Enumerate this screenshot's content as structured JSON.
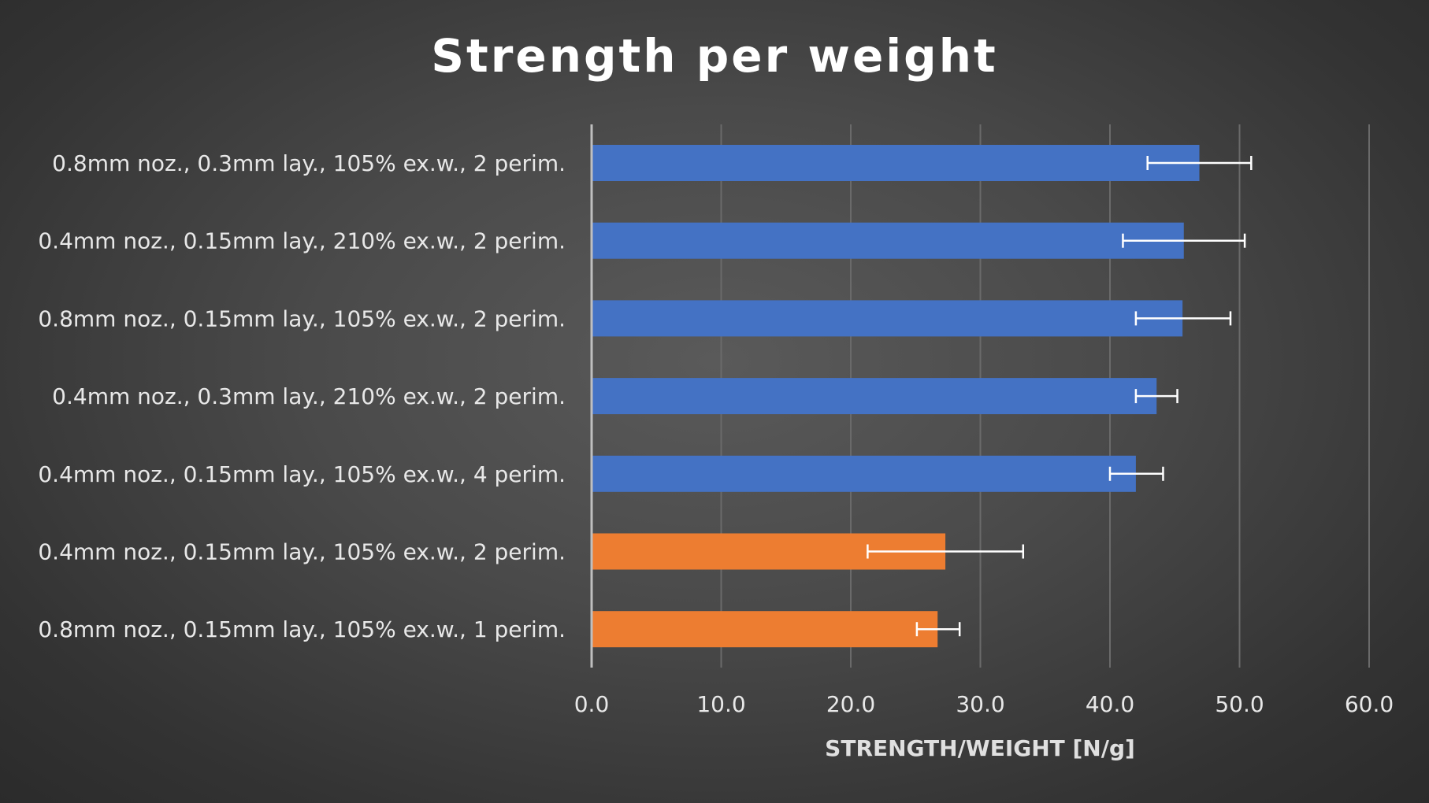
{
  "chart_data": {
    "type": "bar",
    "orientation": "horizontal",
    "title": "Strength per weight",
    "xlabel": "STRENGTH/WEIGHT [N/g]",
    "ylabel": "",
    "xlim": [
      0,
      60
    ],
    "x_ticks": [
      "0.0",
      "10.0",
      "20.0",
      "30.0",
      "40.0",
      "50.0",
      "60.0"
    ],
    "x_tick_values": [
      0,
      10,
      20,
      30,
      40,
      50,
      60
    ],
    "grid": true,
    "legend": false,
    "categories": [
      "0.8mm noz., 0.3mm lay., 105% ex.w., 2 perim.",
      "0.4mm noz., 0.15mm lay., 210% ex.w., 2 perim.",
      "0.8mm noz., 0.15mm lay., 105% ex.w., 2 perim.",
      "0.4mm noz., 0.3mm lay., 210% ex.w., 2 perim.",
      "0.4mm noz., 0.15mm lay., 105% ex.w., 4 perim.",
      "0.4mm noz., 0.15mm lay., 105% ex.w., 2 perim.",
      "0.8mm noz., 0.15mm lay., 105% ex.w., 1 perim."
    ],
    "values": [
      46.9,
      45.7,
      45.6,
      43.6,
      42.0,
      27.3,
      26.7
    ],
    "error_low": [
      42.9,
      41.0,
      42.0,
      42.0,
      40.0,
      21.3,
      25.1
    ],
    "error_high": [
      50.9,
      50.4,
      49.3,
      45.2,
      44.1,
      33.3,
      28.4
    ],
    "colors": [
      "#4472c4",
      "#4472c4",
      "#4472c4",
      "#4472c4",
      "#4472c4",
      "#ed7d31",
      "#ed7d31"
    ]
  }
}
